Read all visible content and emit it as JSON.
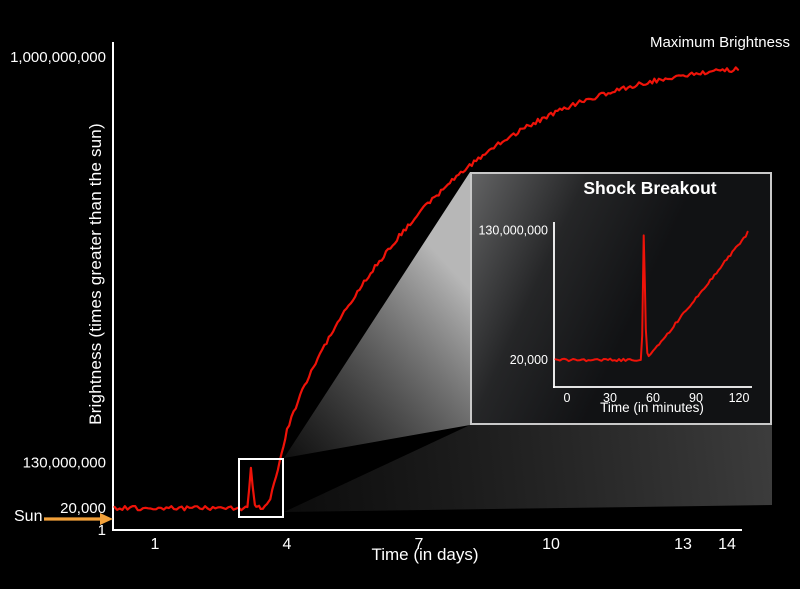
{
  "figure": {
    "background": "#000000",
    "max_brightness_label": "Maximum Brightness",
    "sun_label": "Sun",
    "accent_arrow_color": "#f2a13a",
    "line_color": "#ef1309"
  },
  "chart_data": [
    {
      "id": "main",
      "type": "line",
      "title": "",
      "xlabel": "Time (in days)",
      "ylabel": "Brightness  (times greater than the sun)",
      "x_range": [
        0.08,
        14.25
      ],
      "ylim": [
        1,
        1000000000
      ],
      "grid": false,
      "legend": "none",
      "x_ticks": [
        {
          "label": "1",
          "value": 1
        },
        {
          "label": "4",
          "value": 4
        },
        {
          "label": "7",
          "value": 7
        },
        {
          "label": "10",
          "value": 10
        },
        {
          "label": "13",
          "value": 13
        },
        {
          "label": "14",
          "value": 14
        }
      ],
      "y_ticks": [
        {
          "label": "1,000,000,000",
          "value": 1000000000
        },
        {
          "label": "130,000,000",
          "value": 130000000
        },
        {
          "label": "20,000",
          "value": 20000
        },
        {
          "label": "1",
          "value": 1
        }
      ],
      "y_scale_anchors": [
        [
          1,
          0.0
        ],
        [
          20000,
          0.045
        ],
        [
          130000000,
          0.139
        ],
        [
          1000000000,
          0.969
        ]
      ],
      "annotations": [
        "Maximum Brightness",
        "Sun",
        "zoom box around shock breakout near day 3"
      ],
      "series": [
        {
          "name": "Supernova brightness (times greater than the sun)",
          "color": "#ef1309",
          "points": [
            [
              0.08,
              20000
            ],
            [
              3.02,
              20000
            ],
            [
              3.1,
              20000
            ],
            [
              3.14,
              60000000
            ],
            [
              3.18,
              115000000
            ],
            [
              3.22,
              60000000
            ],
            [
              3.27,
              5000000
            ],
            [
              3.33,
              300000
            ],
            [
              3.4,
              20000
            ],
            [
              3.5,
              2000000
            ],
            [
              3.62,
              30000000
            ],
            [
              3.75,
              90000000
            ],
            [
              3.88,
              150000000
            ],
            [
              4,
              200000000
            ],
            [
              4.25,
              262000000
            ],
            [
              4.5,
              315000000
            ],
            [
              4.75,
              362000000
            ],
            [
              5,
              405000000
            ],
            [
              5.25,
              444000000
            ],
            [
              5.5,
              481000000
            ],
            [
              5.75,
              516000000
            ],
            [
              6,
              549000000
            ],
            [
              6.25,
              580000000
            ],
            [
              6.5,
              610000000
            ],
            [
              6.75,
              638000000
            ],
            [
              7,
              664000000
            ],
            [
              7.25,
              689000000
            ],
            [
              7.5,
              712000000
            ],
            [
              7.75,
              734000000
            ],
            [
              8,
              755000000
            ],
            [
              8.25,
              774000000
            ],
            [
              8.5,
              792000000
            ],
            [
              8.75,
              809000000
            ],
            [
              9,
              825000000
            ],
            [
              9.25,
              839000000
            ],
            [
              9.5,
              853000000
            ],
            [
              9.75,
              865000000
            ],
            [
              10,
              877000000
            ],
            [
              10.25,
              887000000
            ],
            [
              10.5,
              897000000
            ],
            [
              10.75,
              906000000
            ],
            [
              11,
              914000000
            ],
            [
              11.25,
              922000000
            ],
            [
              11.5,
              929000000
            ],
            [
              11.75,
              935000000
            ],
            [
              12,
              941000000
            ],
            [
              12.25,
              947000000
            ],
            [
              12.5,
              952000000
            ],
            [
              12.75,
              956000000
            ],
            [
              13,
              960000000
            ],
            [
              13.25,
              964000000
            ],
            [
              13.5,
              967000000
            ],
            [
              13.75,
              970000000
            ],
            [
              14,
              972000000
            ],
            [
              14.25,
              974000000
            ]
          ]
        }
      ]
    },
    {
      "id": "inset",
      "type": "line",
      "title": "Shock Breakout",
      "xlabel": "Time (in minutes)",
      "x_range": [
        -8,
        126
      ],
      "ylim": [
        20000,
        130000000
      ],
      "grid": false,
      "legend": "none",
      "x_ticks": [
        {
          "label": "0",
          "value": 0
        },
        {
          "label": "30",
          "value": 30
        },
        {
          "label": "60",
          "value": 60
        },
        {
          "label": "90",
          "value": 90
        },
        {
          "label": "120",
          "value": 120
        }
      ],
      "y_ticks": [
        {
          "label": "130,000,000",
          "value": 130000000
        },
        {
          "label": "20,000",
          "value": 20000
        }
      ],
      "y_scale_anchors": [
        [
          20000,
          0.166
        ],
        [
          130000000,
          0.963
        ]
      ],
      "annotations": [
        "Shock Breakout spike at ~54 minutes"
      ],
      "series": [
        {
          "name": "Shock breakout brightness",
          "color": "#ef1309",
          "points": [
            [
              -8,
              20000
            ],
            [
              50,
              20000
            ],
            [
              51.5,
              20000
            ],
            [
              52.5,
              25000000
            ],
            [
              53.5,
              125000000
            ],
            [
              54.3,
              80000000
            ],
            [
              55,
              30000000
            ],
            [
              56,
              8000000
            ],
            [
              57,
              3000000
            ],
            [
              60,
              8000000
            ],
            [
              70,
              26000000
            ],
            [
              80,
              44000000
            ],
            [
              90,
              62000000
            ],
            [
              100,
              80000000
            ],
            [
              110,
              98000000
            ],
            [
              118,
              112000000
            ],
            [
              126,
              127000000
            ]
          ]
        }
      ]
    }
  ]
}
